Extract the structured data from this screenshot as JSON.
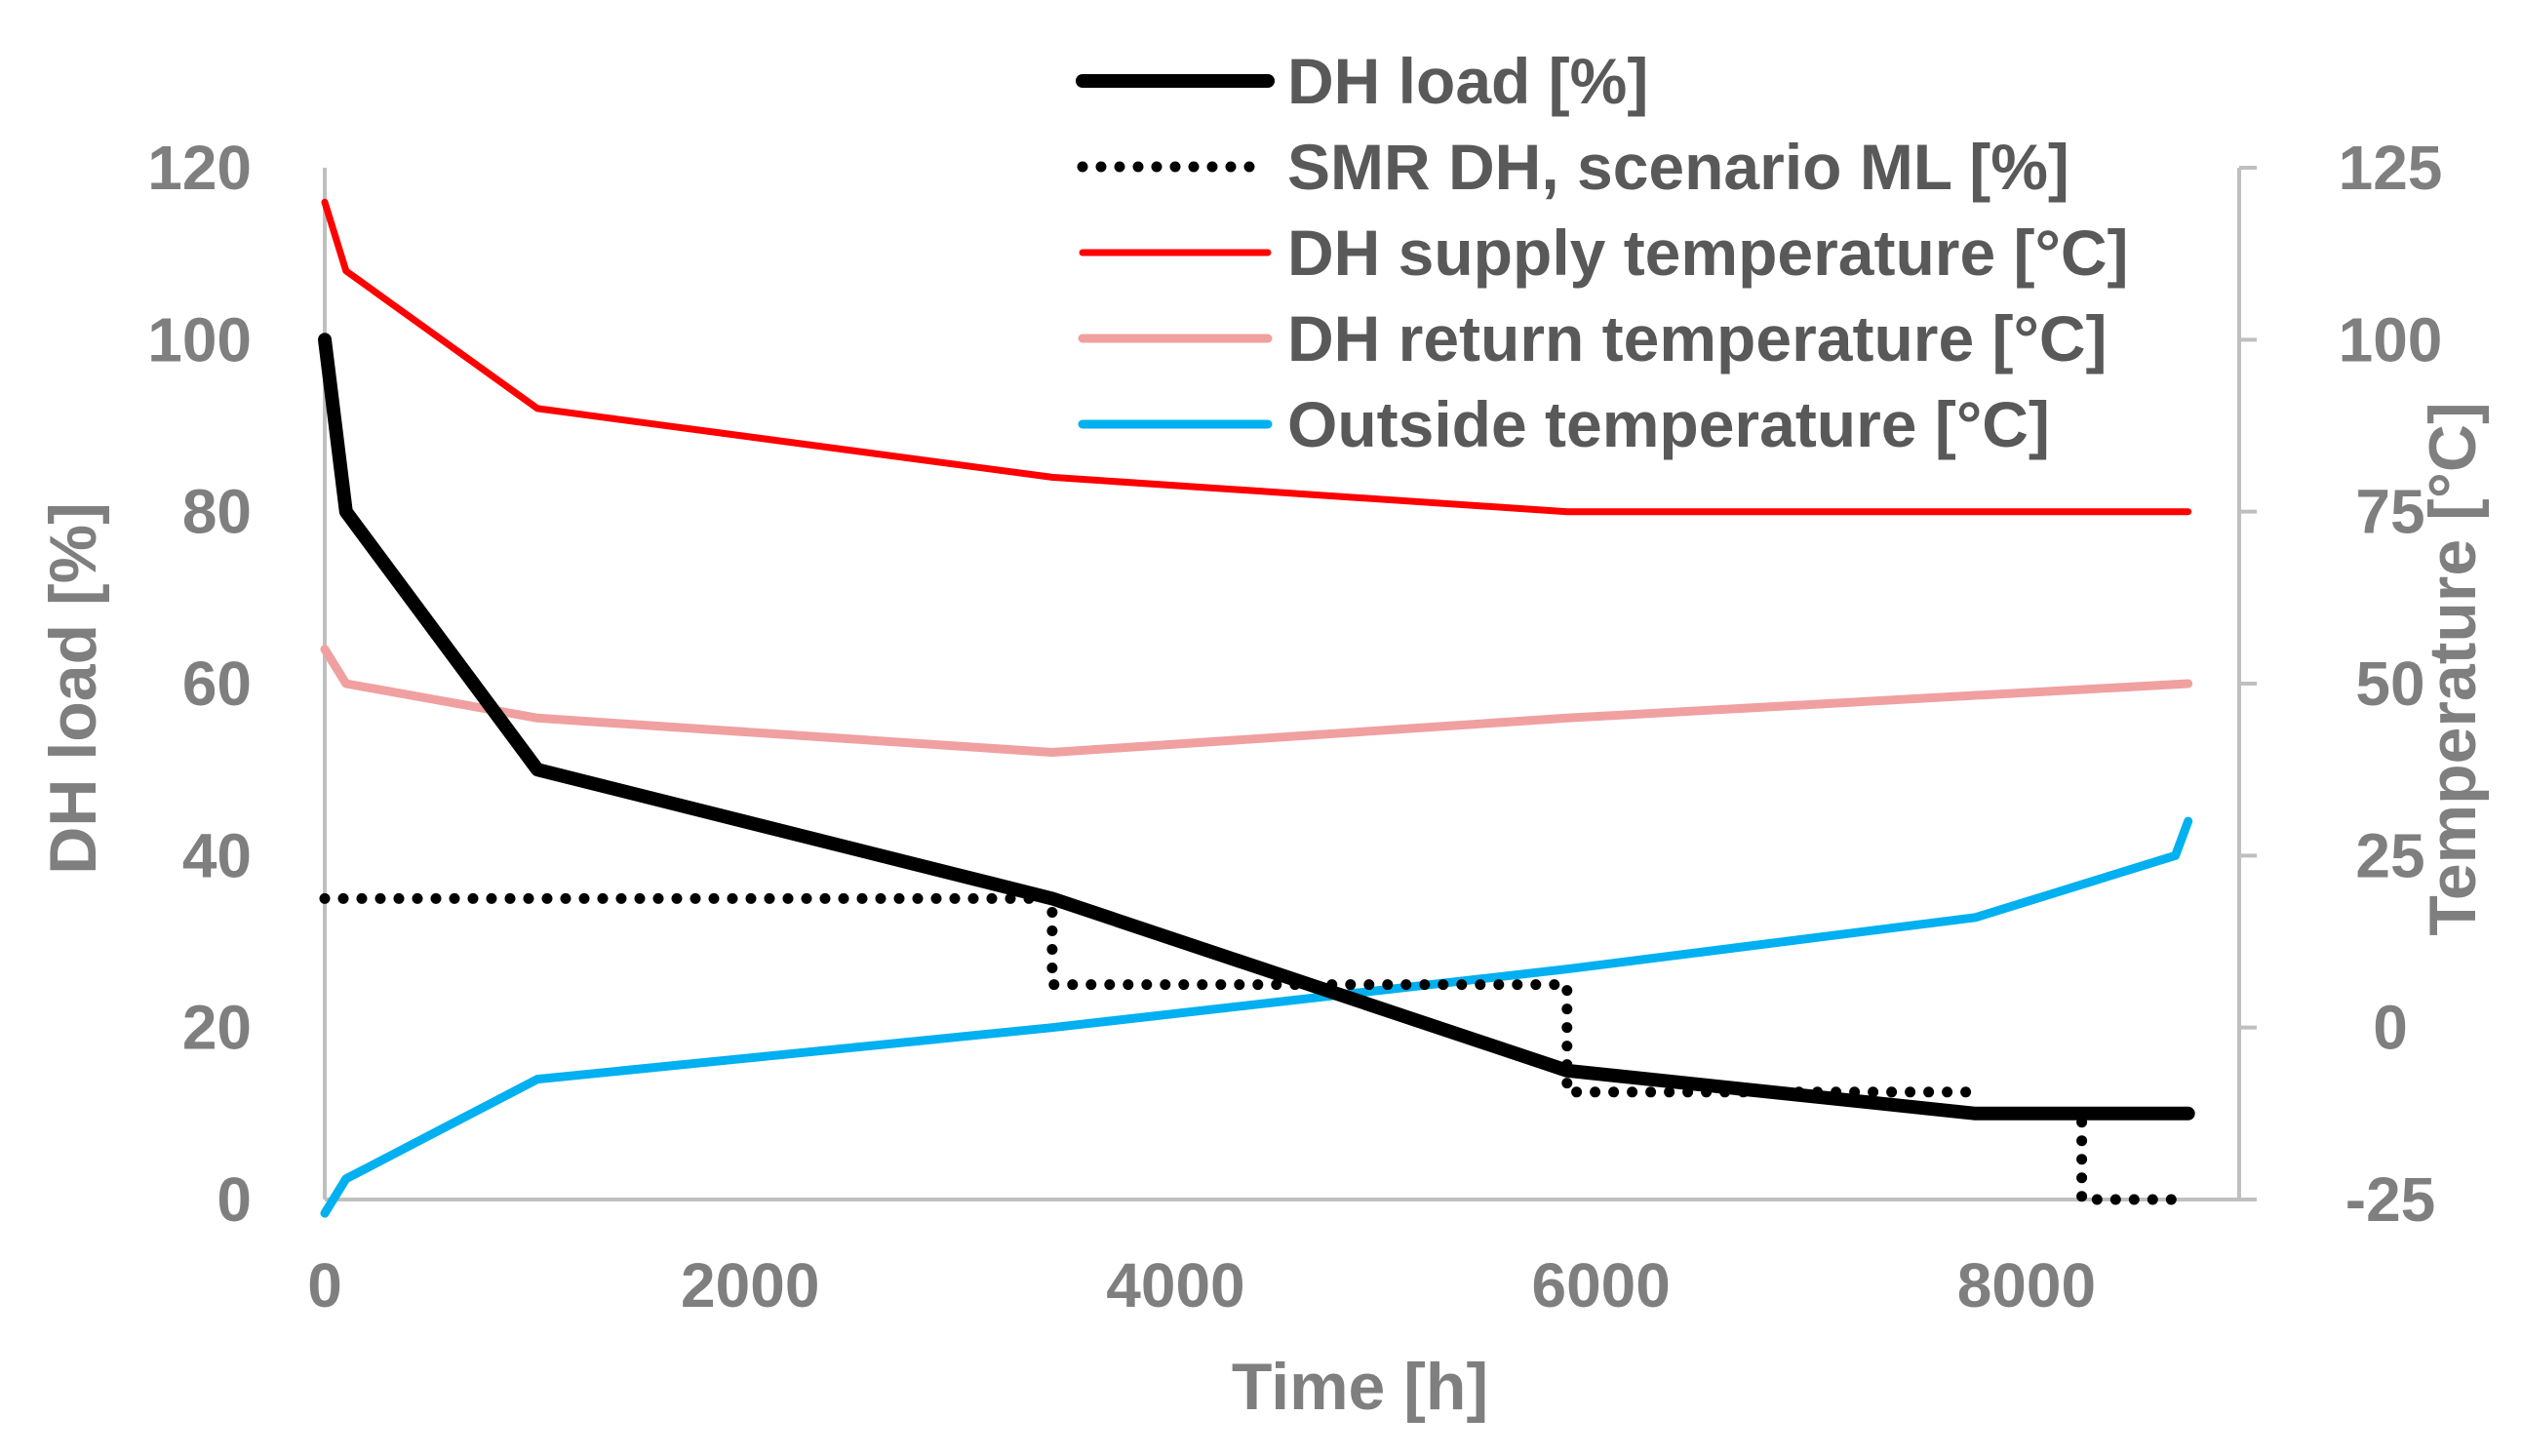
{
  "chart_data": {
    "type": "line",
    "xlabel": "Time [h]",
    "ylabel": "DH load [%]",
    "y2label": "Temperature [°C]",
    "xlim": [
      0,
      9000
    ],
    "ylim": [
      0,
      120
    ],
    "y2lim": [
      -25,
      125
    ],
    "xticks": [
      0,
      2000,
      4000,
      6000,
      8000
    ],
    "yticks": [
      0,
      20,
      40,
      60,
      80,
      100,
      120
    ],
    "y2ticks": [
      -25,
      0,
      25,
      50,
      75,
      100,
      125
    ],
    "legend_position": "top-center",
    "grid": false,
    "series": [
      {
        "name": "DH load [%]",
        "axis": "left",
        "color": "#000000",
        "style": "solid-thick",
        "x": [
          0,
          100,
          1000,
          3420,
          5840,
          7760,
          8760
        ],
        "values": [
          100,
          80,
          50,
          35,
          15,
          10,
          10
        ]
      },
      {
        "name": "SMR DH, scenario ML [%]",
        "axis": "left",
        "color": "#000000",
        "style": "dotted",
        "x": [
          0,
          3420,
          3420,
          5840,
          5840,
          7760
        ],
        "values": [
          35,
          35,
          25,
          25,
          12.5,
          12.5
        ],
        "extra_segments": [
          {
            "x": [
              8260,
              8260,
              8760
            ],
            "values": [
              9,
              0,
              0
            ]
          }
        ]
      },
      {
        "name": "DH supply temperature [°C]",
        "axis": "right",
        "color": "#ff0000",
        "style": "solid",
        "x": [
          0,
          100,
          1000,
          3420,
          5840,
          8760
        ],
        "values": [
          120,
          110,
          90,
          80,
          75,
          75
        ]
      },
      {
        "name": "DH return temperature [°C]",
        "axis": "right",
        "color": "#f0a0a0",
        "style": "solid-medium",
        "x": [
          0,
          100,
          1000,
          3420,
          5840,
          8760
        ],
        "values": [
          55,
          50,
          45,
          40,
          45,
          50
        ]
      },
      {
        "name": "Outside temperature [°C]",
        "axis": "right",
        "color": "#00b0f0",
        "style": "solid-medium",
        "x": [
          0,
          100,
          1000,
          3420,
          5840,
          7760,
          8700,
          8760
        ],
        "values": [
          -27,
          -22,
          -7.5,
          0,
          8.5,
          16,
          25,
          30
        ]
      }
    ]
  }
}
